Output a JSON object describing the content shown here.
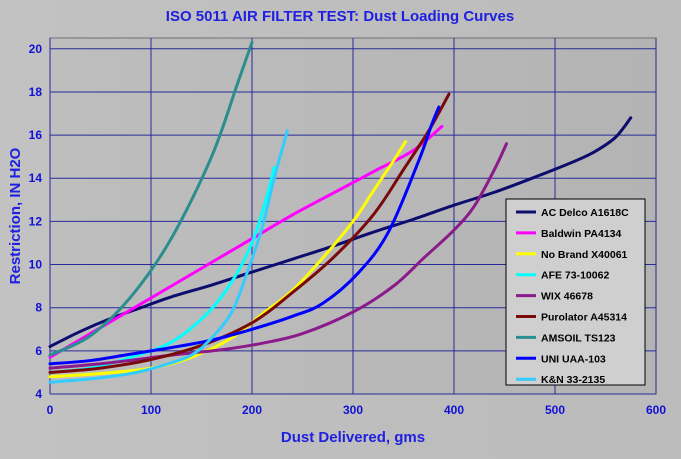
{
  "chart_data": {
    "type": "line",
    "title": "ISO 5011 AIR FILTER TEST: Dust Loading Curves",
    "xlabel": "Dust Delivered, gms",
    "ylabel": "Restriction, IN H2O",
    "xlim": [
      0,
      600
    ],
    "ylim": [
      4,
      20.5
    ],
    "x_ticks": [
      "0",
      "100",
      "200",
      "300",
      "400",
      "500",
      "600"
    ],
    "y_ticks": [
      "4",
      "6",
      "8",
      "10",
      "12",
      "14",
      "16",
      "18",
      "20"
    ],
    "grid": true,
    "legend_position": "right",
    "series": [
      {
        "name": "AC Delco A1618C",
        "color": "#0d0d6e",
        "x": [
          0,
          30,
          60,
          90,
          120,
          160,
          200,
          240,
          280,
          320,
          360,
          400,
          440,
          480,
          520,
          540,
          560,
          575
        ],
        "y": [
          6.2,
          6.9,
          7.5,
          8.0,
          8.5,
          9.05,
          9.65,
          10.25,
          10.85,
          11.5,
          12.1,
          12.75,
          13.35,
          14.05,
          14.8,
          15.25,
          15.9,
          16.8
        ]
      },
      {
        "name": "Baldwin PA4134",
        "color": "#ff00ff",
        "x": [
          0,
          40,
          80,
          120,
          160,
          200,
          240,
          280,
          320,
          360,
          388
        ],
        "y": [
          5.7,
          6.8,
          7.9,
          9.0,
          10.1,
          11.2,
          12.3,
          13.3,
          14.3,
          15.3,
          16.4
        ]
      },
      {
        "name": "No Brand X40061",
        "color": "#ffff00",
        "x": [
          0,
          50,
          100,
          140,
          180,
          210,
          240,
          270,
          300,
          320,
          340,
          352
        ],
        "y": [
          4.8,
          4.95,
          5.2,
          5.7,
          6.6,
          7.7,
          8.8,
          10.3,
          12.0,
          13.4,
          14.8,
          15.7
        ]
      },
      {
        "name": "AFE 73-10062",
        "color": "#00ffff",
        "x": [
          0,
          40,
          80,
          120,
          155,
          180,
          200,
          215,
          222
        ],
        "y": [
          5.0,
          5.2,
          5.7,
          6.4,
          7.7,
          9.2,
          11.0,
          13.2,
          14.5
        ]
      },
      {
        "name": "WIX 46678",
        "color": "#8b1a8b",
        "x": [
          0,
          60,
          120,
          170,
          210,
          250,
          300,
          340,
          370,
          400,
          420,
          440,
          452
        ],
        "y": [
          5.2,
          5.45,
          5.8,
          6.05,
          6.35,
          6.8,
          7.8,
          9.0,
          10.3,
          11.6,
          12.7,
          14.4,
          15.6
        ]
      },
      {
        "name": "Purolator A45314",
        "color": "#7a0a0a",
        "x": [
          0,
          50,
          100,
          150,
          200,
          240,
          280,
          320,
          350,
          375,
          395
        ],
        "y": [
          5.0,
          5.2,
          5.6,
          6.25,
          7.3,
          8.7,
          10.3,
          12.3,
          14.4,
          16.2,
          17.9
        ]
      },
      {
        "name": "AMSOIL TS123",
        "color": "#2a8e8e",
        "x": [
          0,
          40,
          80,
          120,
          160,
          185,
          200
        ],
        "y": [
          5.8,
          6.7,
          8.5,
          11.2,
          15.0,
          18.3,
          20.3
        ]
      },
      {
        "name": "UNI UAA-103",
        "color": "#0000ff",
        "x": [
          0,
          40,
          80,
          120,
          160,
          200,
          240,
          270,
          305,
          335,
          365,
          378,
          385
        ],
        "y": [
          5.4,
          5.55,
          5.85,
          6.15,
          6.5,
          7.0,
          7.6,
          8.2,
          9.6,
          11.5,
          14.8,
          16.5,
          17.3
        ]
      },
      {
        "name": "K&N 33-2135",
        "color": "#33ccff",
        "x": [
          0,
          40,
          80,
          110,
          140,
          160,
          180,
          195,
          210,
          222,
          235
        ],
        "y": [
          4.55,
          4.7,
          4.95,
          5.3,
          5.8,
          6.6,
          7.8,
          9.6,
          11.7,
          14.0,
          16.2
        ]
      }
    ]
  }
}
